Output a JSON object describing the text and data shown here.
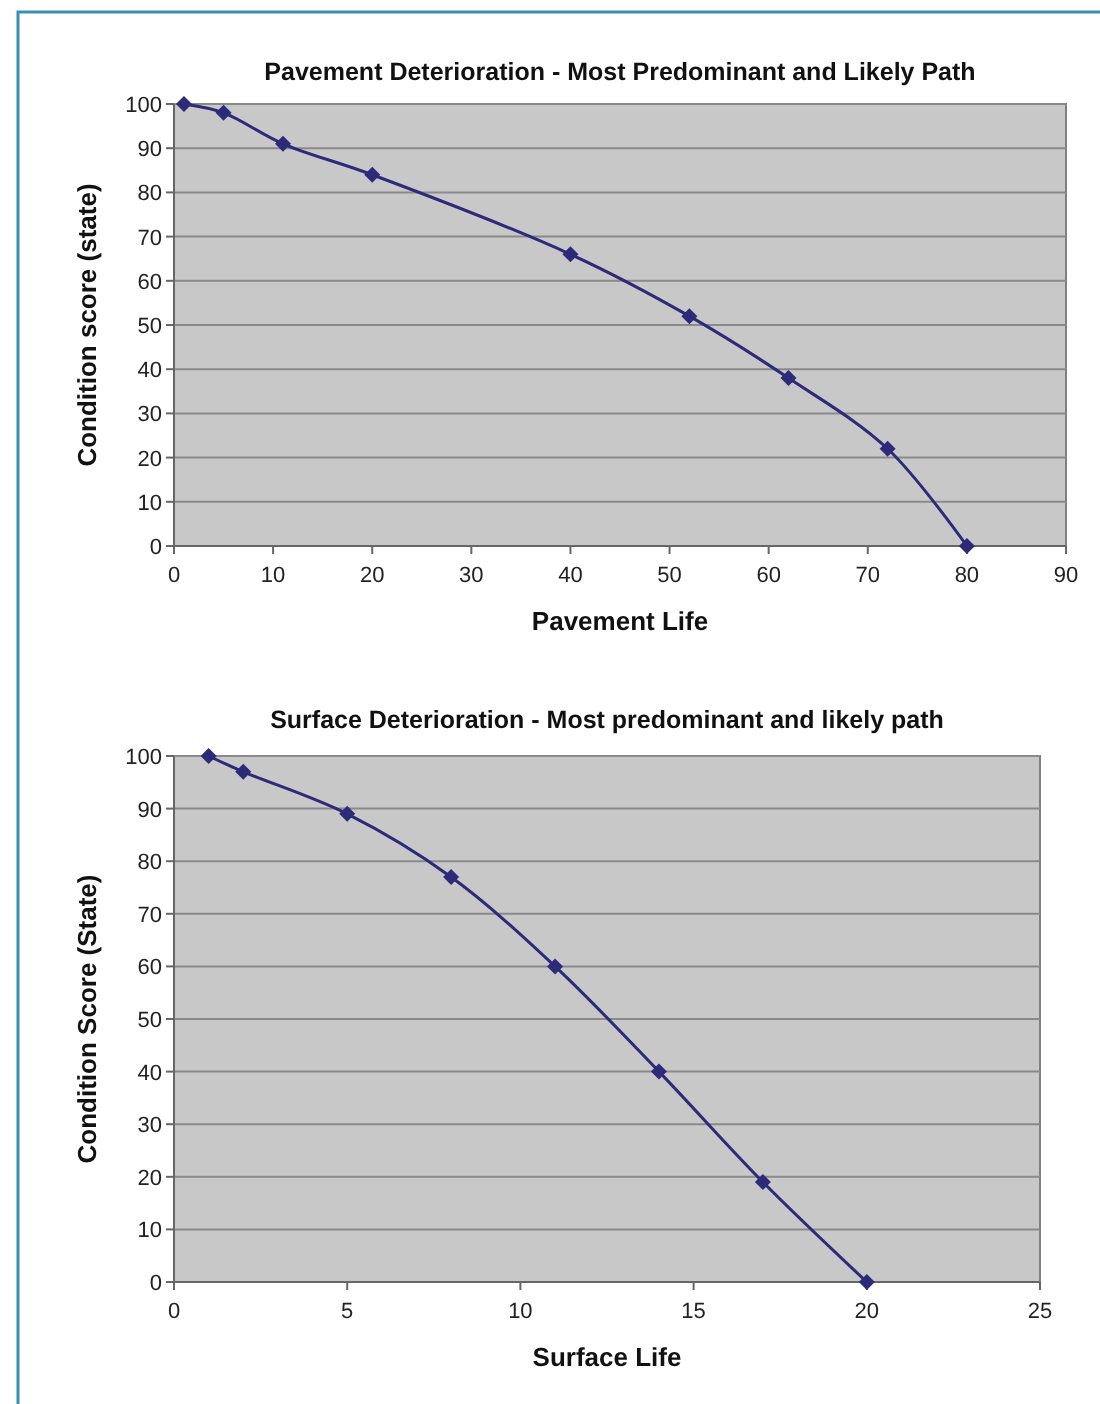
{
  "chart_data": [
    {
      "type": "line",
      "title": "Pavement Deterioration - Most Predominant and Likely Path",
      "xlabel": "Pavement Life",
      "ylabel": "Condition score (state)",
      "xlim": [
        0,
        90
      ],
      "xticks": [
        0,
        10,
        20,
        30,
        40,
        50,
        60,
        70,
        80,
        90
      ],
      "ylim": [
        0,
        100
      ],
      "yticks": [
        0,
        10,
        20,
        30,
        40,
        50,
        60,
        70,
        80,
        90,
        100
      ],
      "grid": "y",
      "marker": "diamond",
      "series": [
        {
          "color": "#2e2a7a",
          "x": [
            1,
            5,
            11,
            20,
            40,
            52,
            62,
            72,
            80
          ],
          "values": [
            100,
            98,
            91,
            84,
            66,
            52,
            38,
            22,
            0
          ]
        }
      ]
    },
    {
      "type": "line",
      "title": "Surface Deterioration - Most predominant and likely path",
      "xlabel": "Surface Life",
      "ylabel": "Condition Score (State)",
      "xlim": [
        0,
        25
      ],
      "xticks": [
        0,
        5,
        10,
        15,
        20,
        25
      ],
      "ylim": [
        0,
        100
      ],
      "yticks": [
        0,
        10,
        20,
        30,
        40,
        50,
        60,
        70,
        80,
        90,
        100
      ],
      "grid": "y",
      "marker": "diamond",
      "series": [
        {
          "color": "#2e2a7a",
          "x": [
            1,
            2,
            5,
            8,
            11,
            14,
            17,
            20
          ],
          "values": [
            100,
            97,
            89,
            77,
            60,
            40,
            19,
            0
          ]
        }
      ]
    }
  ]
}
